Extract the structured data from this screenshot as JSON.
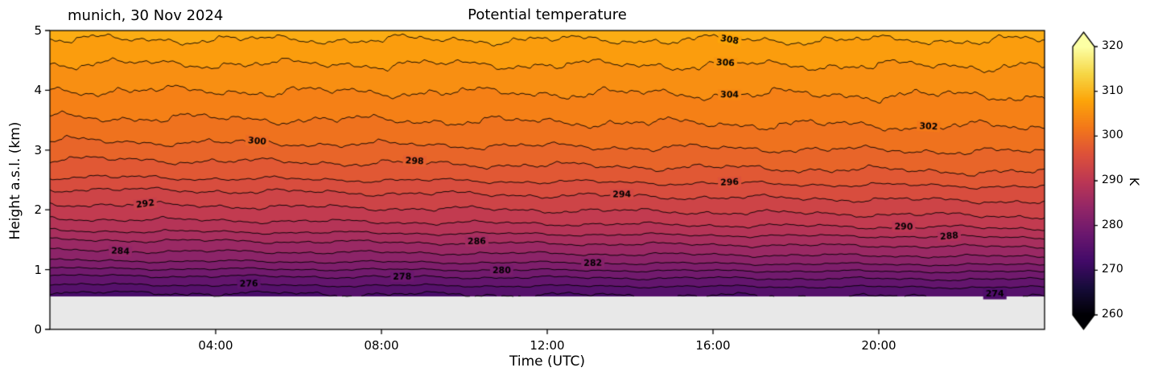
{
  "chart_data": {
    "type": "contour",
    "title": "Potential temperature",
    "annotation": "munich, 30 Nov 2024",
    "xlabel": "Time (UTC)",
    "ylabel": "Height a.s.l. (km)",
    "x_range_hours": [
      0,
      24
    ],
    "x_tick_hours": [
      4,
      8,
      12,
      16,
      20
    ],
    "x_tick_labels": [
      "04:00",
      "08:00",
      "12:00",
      "16:00",
      "20:00"
    ],
    "y_range_km": [
      0,
      5
    ],
    "y_tick_km": [
      0,
      1,
      2,
      3,
      4,
      5
    ],
    "data_floor_km": 0.55,
    "below_ground_color": "#e8e8e8",
    "contour_line_color": "#000000",
    "contour_interval_K": 2,
    "contour_levels_K": [
      274,
      276,
      278,
      280,
      282,
      284,
      286,
      288,
      290,
      292,
      294,
      296,
      298,
      300,
      302,
      304,
      306,
      308
    ],
    "theta_profile_K_by_height_km": [
      [
        0.55,
        273.5
      ],
      [
        0.62,
        274.0
      ],
      [
        0.75,
        276.0
      ],
      [
        0.9,
        278.0
      ],
      [
        1.02,
        280.0
      ],
      [
        1.15,
        282.0
      ],
      [
        1.32,
        284.0
      ],
      [
        1.5,
        286.0
      ],
      [
        1.65,
        288.0
      ],
      [
        1.85,
        290.0
      ],
      [
        2.1,
        292.0
      ],
      [
        2.35,
        294.0
      ],
      [
        2.55,
        296.0
      ],
      [
        2.85,
        298.0
      ],
      [
        3.15,
        300.0
      ],
      [
        3.55,
        302.0
      ],
      [
        4.0,
        304.0
      ],
      [
        4.45,
        306.0
      ],
      [
        4.85,
        308.0
      ],
      [
        5.0,
        308.7
      ]
    ],
    "diurnal_descent_trend": {
      "peak_warming_K_per_day": 1.7,
      "peak_height_km": 2.1,
      "gaussian_halfwidth_km": 1.55
    },
    "contour_labels": [
      {
        "level": 274,
        "t_hours": 22.8
      },
      {
        "level": 276,
        "t_hours": 4.8
      },
      {
        "level": 278,
        "t_hours": 8.5
      },
      {
        "level": 280,
        "t_hours": 10.9
      },
      {
        "level": 282,
        "t_hours": 13.1
      },
      {
        "level": 284,
        "t_hours": 1.7
      },
      {
        "level": 286,
        "t_hours": 10.3
      },
      {
        "level": 288,
        "t_hours": 21.7
      },
      {
        "level": 290,
        "t_hours": 20.6
      },
      {
        "level": 292,
        "t_hours": 2.3
      },
      {
        "level": 294,
        "t_hours": 13.8
      },
      {
        "level": 296,
        "t_hours": 16.4
      },
      {
        "level": 298,
        "t_hours": 8.8
      },
      {
        "level": 300,
        "t_hours": 5.0
      },
      {
        "level": 302,
        "t_hours": 21.2
      },
      {
        "level": 304,
        "t_hours": 16.4
      },
      {
        "level": 306,
        "t_hours": 16.3
      },
      {
        "level": 308,
        "t_hours": 16.4
      }
    ],
    "colorbar": {
      "label": "K",
      "vmin": 260,
      "vmax": 320,
      "ticks": [
        260,
        270,
        280,
        290,
        300,
        310,
        320
      ],
      "extend": "both",
      "colormap": "inferno",
      "colormap_stops": [
        [
          0.0,
          "#000004"
        ],
        [
          0.1,
          "#160b39"
        ],
        [
          0.2,
          "#420a68"
        ],
        [
          0.3,
          "#6a176e"
        ],
        [
          0.4,
          "#932667"
        ],
        [
          0.5,
          "#bc3754"
        ],
        [
          0.6,
          "#dd513a"
        ],
        [
          0.7,
          "#f37819"
        ],
        [
          0.8,
          "#fca50a"
        ],
        [
          0.9,
          "#f6d746"
        ],
        [
          1.0,
          "#fcffa4"
        ]
      ]
    }
  }
}
